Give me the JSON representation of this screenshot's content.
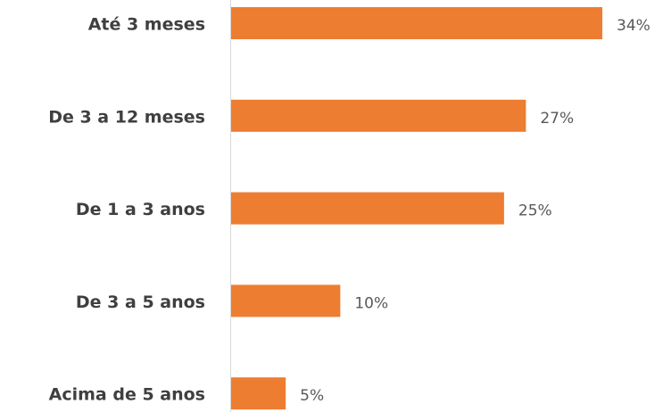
{
  "chart_data": {
    "type": "bar",
    "orientation": "horizontal",
    "categories": [
      "Até 3 meses",
      "De 3 a 12 meses",
      "De 1 a 3 anos",
      "De 3 a 5 anos",
      "Acima de 5 anos"
    ],
    "values": [
      34,
      27,
      25,
      10,
      5
    ],
    "value_labels": [
      "34%",
      "27%",
      "25%",
      "10%",
      "5%"
    ],
    "color": "#ed7d31"
  }
}
